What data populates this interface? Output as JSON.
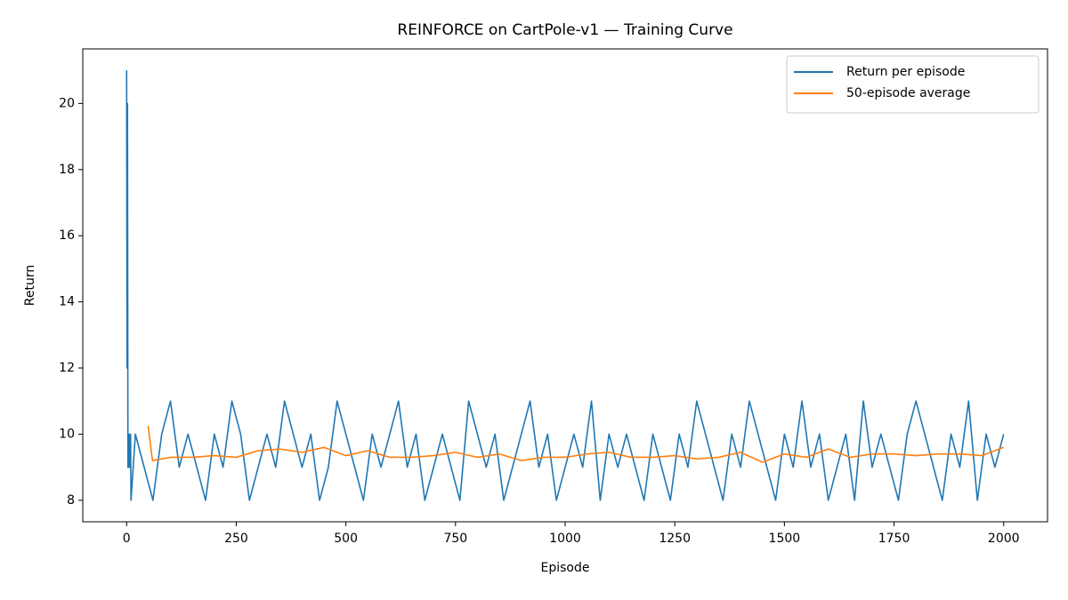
{
  "chart_data": {
    "type": "line",
    "title": "REINFORCE on CartPole-v1 — Training Curve",
    "x_label": "Episode",
    "y_label": "Return",
    "xlim": [
      -100,
      2100
    ],
    "ylim": [
      7.35,
      21.65
    ],
    "xticks": [
      0,
      250,
      500,
      750,
      1000,
      1250,
      1500,
      1750,
      2000
    ],
    "yticks": [
      8,
      10,
      12,
      14,
      16,
      18,
      20
    ],
    "legend": "upper right",
    "series": [
      {
        "name": "Return per episode",
        "color": "#1f77b4",
        "x": [
          0,
          1,
          2,
          3,
          4,
          5,
          6,
          7,
          8,
          9,
          10,
          20,
          40,
          60,
          80,
          100,
          120,
          140,
          160,
          180,
          200,
          220,
          240,
          260,
          280,
          300,
          320,
          340,
          360,
          380,
          400,
          420,
          440,
          460,
          480,
          500,
          520,
          540,
          560,
          580,
          600,
          620,
          640,
          660,
          680,
          700,
          720,
          740,
          760,
          780,
          800,
          820,
          840,
          860,
          880,
          900,
          920,
          940,
          960,
          980,
          1000,
          1020,
          1040,
          1060,
          1080,
          1100,
          1120,
          1140,
          1160,
          1180,
          1200,
          1220,
          1240,
          1260,
          1280,
          1300,
          1320,
          1340,
          1360,
          1380,
          1400,
          1420,
          1440,
          1460,
          1480,
          1500,
          1520,
          1540,
          1560,
          1580,
          1600,
          1620,
          1640,
          1660,
          1680,
          1700,
          1720,
          1740,
          1760,
          1780,
          1800,
          1820,
          1840,
          1860,
          1880,
          1900,
          1920,
          1940,
          1960,
          1980,
          2000
        ],
        "values": [
          21,
          12,
          20,
          9,
          10,
          9,
          10,
          9,
          9,
          10,
          8,
          10,
          9,
          8,
          10,
          11,
          9,
          10,
          9,
          8,
          10,
          9,
          11,
          10,
          8,
          9,
          10,
          9,
          11,
          10,
          9,
          10,
          8,
          9,
          11,
          10,
          9,
          8,
          10,
          9,
          10,
          11,
          9,
          10,
          8,
          9,
          10,
          9,
          8,
          11,
          10,
          9,
          10,
          8,
          9,
          10,
          11,
          9,
          10,
          8,
          9,
          10,
          9,
          11,
          8,
          10,
          9,
          10,
          9,
          8,
          10,
          9,
          8,
          10,
          9,
          11,
          10,
          9,
          8,
          10,
          9,
          11,
          10,
          9,
          8,
          10,
          9,
          11,
          9,
          10,
          8,
          9,
          10,
          8,
          11,
          9,
          10,
          9,
          8,
          10,
          11,
          10,
          9,
          8,
          10,
          9,
          11,
          8,
          10,
          9,
          10
        ]
      },
      {
        "name": "50-episode average",
        "color": "#ff7f0e",
        "x": [
          49,
          59,
          100,
          150,
          200,
          250,
          300,
          350,
          400,
          450,
          500,
          550,
          600,
          650,
          700,
          750,
          800,
          850,
          900,
          950,
          1000,
          1050,
          1100,
          1150,
          1200,
          1250,
          1300,
          1350,
          1400,
          1450,
          1500,
          1550,
          1600,
          1650,
          1700,
          1750,
          1800,
          1850,
          1900,
          1950,
          2000
        ],
        "values": [
          10.25,
          9.2,
          9.3,
          9.3,
          9.35,
          9.3,
          9.5,
          9.55,
          9.45,
          9.6,
          9.35,
          9.5,
          9.3,
          9.3,
          9.35,
          9.45,
          9.3,
          9.4,
          9.2,
          9.3,
          9.3,
          9.4,
          9.45,
          9.3,
          9.3,
          9.35,
          9.25,
          9.3,
          9.45,
          9.15,
          9.4,
          9.3,
          9.55,
          9.3,
          9.4,
          9.4,
          9.35,
          9.4,
          9.4,
          9.35,
          9.6
        ]
      }
    ]
  }
}
